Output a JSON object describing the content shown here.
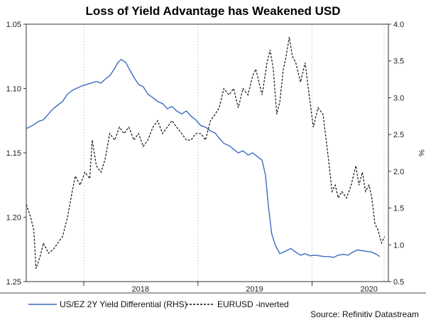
{
  "chart_data": {
    "type": "line",
    "title": "Loss of Yield Advantage has Weakened USD",
    "source": "Source: Refinitiv Datastream",
    "x_ticks": [
      "2018",
      "2019",
      "2020"
    ],
    "xlim": [
      "2017-07-01",
      "2020-09-01"
    ],
    "y_left": {
      "min": 1.05,
      "max": 1.25,
      "inverted": true,
      "ticks": [
        "1.05",
        "1.10",
        "1.15",
        "1.20",
        "1.25"
      ]
    },
    "y_right": {
      "min": 0.5,
      "max": 4.0,
      "ticks": [
        "4.0",
        "3.5",
        "3.0",
        "2.5",
        "2.0",
        "1.5",
        "1.0",
        "0.5"
      ],
      "label": "%"
    },
    "grid": {
      "vertical": true,
      "style": "dotted"
    },
    "legend_position": "bottom",
    "series": [
      {
        "name": "US/EZ 2Y Yield Differential (RHS)",
        "axis": "right",
        "color": "#3a6bbf",
        "style": "solid",
        "points": [
          [
            "2017-07-01",
            2.58
          ],
          [
            "2017-07-20",
            2.62
          ],
          [
            "2017-08-10",
            2.68
          ],
          [
            "2017-08-25",
            2.7
          ],
          [
            "2017-09-10",
            2.78
          ],
          [
            "2017-09-25",
            2.85
          ],
          [
            "2017-10-10",
            2.9
          ],
          [
            "2017-10-25",
            2.95
          ],
          [
            "2017-11-10",
            3.05
          ],
          [
            "2017-11-25",
            3.1
          ],
          [
            "2017-12-10",
            3.13
          ],
          [
            "2017-12-25",
            3.16
          ],
          [
            "2018-01-10",
            3.18
          ],
          [
            "2018-01-25",
            3.2
          ],
          [
            "2018-02-10",
            3.22
          ],
          [
            "2018-02-25",
            3.2
          ],
          [
            "2018-03-10",
            3.25
          ],
          [
            "2018-03-25",
            3.3
          ],
          [
            "2018-04-10",
            3.4
          ],
          [
            "2018-04-20",
            3.48
          ],
          [
            "2018-05-01",
            3.52
          ],
          [
            "2018-05-15",
            3.48
          ],
          [
            "2018-05-25",
            3.4
          ],
          [
            "2018-06-10",
            3.28
          ],
          [
            "2018-06-25",
            3.18
          ],
          [
            "2018-07-10",
            3.15
          ],
          [
            "2018-07-25",
            3.05
          ],
          [
            "2018-08-10",
            3.0
          ],
          [
            "2018-08-25",
            2.95
          ],
          [
            "2018-09-10",
            2.92
          ],
          [
            "2018-09-25",
            2.85
          ],
          [
            "2018-10-10",
            2.88
          ],
          [
            "2018-10-25",
            2.82
          ],
          [
            "2018-11-10",
            2.78
          ],
          [
            "2018-11-25",
            2.82
          ],
          [
            "2018-12-10",
            2.75
          ],
          [
            "2018-12-25",
            2.7
          ],
          [
            "2019-01-10",
            2.62
          ],
          [
            "2019-01-25",
            2.6
          ],
          [
            "2019-02-10",
            2.55
          ],
          [
            "2019-02-25",
            2.52
          ],
          [
            "2019-03-10",
            2.45
          ],
          [
            "2019-03-25",
            2.38
          ],
          [
            "2019-04-10",
            2.35
          ],
          [
            "2019-04-25",
            2.3
          ],
          [
            "2019-05-10",
            2.25
          ],
          [
            "2019-05-25",
            2.28
          ],
          [
            "2019-06-10",
            2.22
          ],
          [
            "2019-06-25",
            2.25
          ],
          [
            "2019-07-10",
            2.2
          ],
          [
            "2019-07-25",
            2.15
          ],
          [
            "2019-08-05",
            1.95
          ],
          [
            "2019-08-15",
            1.5
          ],
          [
            "2019-08-25",
            1.15
          ],
          [
            "2019-09-05",
            1.0
          ],
          [
            "2019-09-20",
            0.88
          ],
          [
            "2019-10-10",
            0.92
          ],
          [
            "2019-10-25",
            0.95
          ],
          [
            "2019-11-10",
            0.9
          ],
          [
            "2019-11-25",
            0.86
          ],
          [
            "2019-12-10",
            0.88
          ],
          [
            "2019-12-25",
            0.85
          ],
          [
            "2020-01-10",
            0.86
          ],
          [
            "2020-01-25",
            0.85
          ],
          [
            "2020-02-10",
            0.84
          ],
          [
            "2020-02-25",
            0.84
          ],
          [
            "2020-03-10",
            0.83
          ],
          [
            "2020-03-25",
            0.86
          ],
          [
            "2020-04-10",
            0.87
          ],
          [
            "2020-04-25",
            0.86
          ],
          [
            "2020-05-10",
            0.9
          ],
          [
            "2020-05-25",
            0.93
          ],
          [
            "2020-06-10",
            0.92
          ],
          [
            "2020-06-25",
            0.91
          ],
          [
            "2020-07-10",
            0.9
          ],
          [
            "2020-07-25",
            0.87
          ],
          [
            "2020-08-05",
            0.84
          ]
        ]
      },
      {
        "name": "EURUSD -inverted",
        "axis": "left",
        "color": "#111111",
        "style": "dashed",
        "points": [
          [
            "2017-07-01",
            1.19
          ],
          [
            "2017-07-15",
            1.2
          ],
          [
            "2017-07-25",
            1.21
          ],
          [
            "2017-08-01",
            1.24
          ],
          [
            "2017-08-15",
            1.23
          ],
          [
            "2017-08-25",
            1.22
          ],
          [
            "2017-09-10",
            1.228
          ],
          [
            "2017-09-25",
            1.225
          ],
          [
            "2017-10-10",
            1.22
          ],
          [
            "2017-10-25",
            1.215
          ],
          [
            "2017-11-10",
            1.2
          ],
          [
            "2017-11-25",
            1.18
          ],
          [
            "2017-12-05",
            1.168
          ],
          [
            "2017-12-20",
            1.175
          ],
          [
            "2018-01-05",
            1.165
          ],
          [
            "2018-01-20",
            1.17
          ],
          [
            "2018-01-28",
            1.14
          ],
          [
            "2018-02-10",
            1.16
          ],
          [
            "2018-02-25",
            1.165
          ],
          [
            "2018-03-10",
            1.155
          ],
          [
            "2018-03-25",
            1.135
          ],
          [
            "2018-04-10",
            1.14
          ],
          [
            "2018-04-25",
            1.13
          ],
          [
            "2018-05-10",
            1.135
          ],
          [
            "2018-05-25",
            1.13
          ],
          [
            "2018-06-10",
            1.14
          ],
          [
            "2018-06-25",
            1.135
          ],
          [
            "2018-07-10",
            1.145
          ],
          [
            "2018-07-25",
            1.14
          ],
          [
            "2018-08-10",
            1.13
          ],
          [
            "2018-08-25",
            1.125
          ],
          [
            "2018-09-10",
            1.135
          ],
          [
            "2018-09-25",
            1.13
          ],
          [
            "2018-10-10",
            1.125
          ],
          [
            "2018-10-25",
            1.13
          ],
          [
            "2018-11-10",
            1.135
          ],
          [
            "2018-11-25",
            1.14
          ],
          [
            "2018-12-10",
            1.14
          ],
          [
            "2018-12-25",
            1.135
          ],
          [
            "2019-01-10",
            1.135
          ],
          [
            "2019-01-25",
            1.14
          ],
          [
            "2019-02-10",
            1.125
          ],
          [
            "2019-02-25",
            1.12
          ],
          [
            "2019-03-10",
            1.115
          ],
          [
            "2019-03-25",
            1.1
          ],
          [
            "2019-04-10",
            1.105
          ],
          [
            "2019-04-25",
            1.1
          ],
          [
            "2019-05-10",
            1.115
          ],
          [
            "2019-05-25",
            1.1
          ],
          [
            "2019-06-10",
            1.105
          ],
          [
            "2019-06-25",
            1.09
          ],
          [
            "2019-07-05",
            1.085
          ],
          [
            "2019-07-15",
            1.095
          ],
          [
            "2019-07-25",
            1.105
          ],
          [
            "2019-08-10",
            1.08
          ],
          [
            "2019-08-20",
            1.07
          ],
          [
            "2019-08-30",
            1.085
          ],
          [
            "2019-09-10",
            1.12
          ],
          [
            "2019-09-20",
            1.11
          ],
          [
            "2019-10-01",
            1.085
          ],
          [
            "2019-10-10",
            1.075
          ],
          [
            "2019-10-20",
            1.06
          ],
          [
            "2019-10-30",
            1.075
          ],
          [
            "2019-11-10",
            1.08
          ],
          [
            "2019-11-25",
            1.095
          ],
          [
            "2019-12-10",
            1.08
          ],
          [
            "2019-12-20",
            1.1
          ],
          [
            "2020-01-05",
            1.13
          ],
          [
            "2020-01-20",
            1.115
          ],
          [
            "2020-02-05",
            1.12
          ],
          [
            "2020-02-20",
            1.15
          ],
          [
            "2020-03-05",
            1.18
          ],
          [
            "2020-03-15",
            1.175
          ],
          [
            "2020-03-25",
            1.185
          ],
          [
            "2020-04-05",
            1.18
          ],
          [
            "2020-04-20",
            1.185
          ],
          [
            "2020-05-05",
            1.175
          ],
          [
            "2020-05-20",
            1.16
          ],
          [
            "2020-05-30",
            1.175
          ],
          [
            "2020-06-10",
            1.165
          ],
          [
            "2020-06-20",
            1.18
          ],
          [
            "2020-07-01",
            1.175
          ],
          [
            "2020-07-10",
            1.185
          ],
          [
            "2020-07-20",
            1.205
          ],
          [
            "2020-07-30",
            1.21
          ],
          [
            "2020-08-10",
            1.22
          ],
          [
            "2020-08-20",
            1.215
          ]
        ]
      }
    ]
  }
}
